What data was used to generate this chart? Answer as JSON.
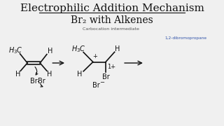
{
  "title_line1": "Electrophilic Addition Mechanism",
  "title_line2": "Br₂ with Alkenes",
  "title_fontsize": 11,
  "subtitle_fontsize": 10,
  "bg_color": "#f0f0f0",
  "text_color": "#111111",
  "carbocation_label": "Carbocation intermediate",
  "product_label": "1,2-dibromopropane",
  "product_label_color": "#3355aa"
}
